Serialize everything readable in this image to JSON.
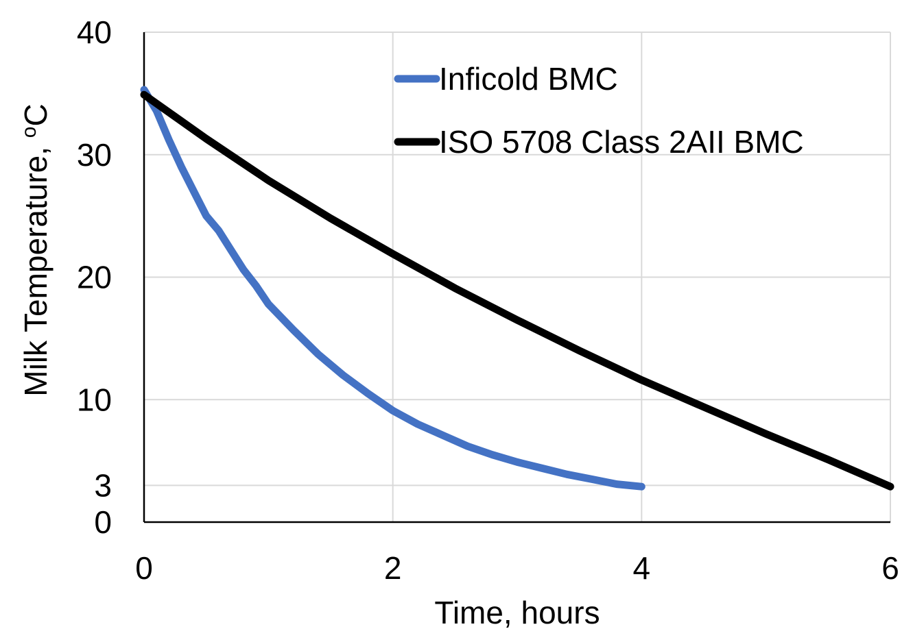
{
  "chart_data": {
    "type": "line",
    "xlabel": "Time, hours",
    "ylabel_main": "Milk Temperature, ",
    "ylabel_super": "o",
    "ylabel_unit": "C",
    "xlim": [
      0,
      6
    ],
    "ylim": [
      0,
      40
    ],
    "x_ticks": [
      0,
      2,
      4,
      6
    ],
    "x_tick_labels": [
      "0",
      "2",
      "4",
      "6"
    ],
    "y_ticks": [
      0,
      3,
      10,
      20,
      30,
      40
    ],
    "y_tick_labels": [
      "0",
      "3",
      "10",
      "20",
      "30",
      "40"
    ],
    "grid": true,
    "legend_position": "top-right",
    "series": [
      {
        "name": "Inficold BMC",
        "color": "#4472C4",
        "x": [
          0,
          0.1,
          0.2,
          0.3,
          0.4,
          0.5,
          0.6,
          0.7,
          0.8,
          0.9,
          1.0,
          1.2,
          1.4,
          1.6,
          1.8,
          2.0,
          2.2,
          2.4,
          2.6,
          2.8,
          3.0,
          3.2,
          3.4,
          3.6,
          3.8,
          4.0
        ],
        "y": [
          35.3,
          33.6,
          31.2,
          29.0,
          27.0,
          25.0,
          23.8,
          22.2,
          20.6,
          19.3,
          17.8,
          15.7,
          13.7,
          12.0,
          10.5,
          9.1,
          8.0,
          7.1,
          6.2,
          5.5,
          4.9,
          4.4,
          3.9,
          3.5,
          3.1,
          2.9
        ]
      },
      {
        "name": "ISO 5708 Class 2AII BMC",
        "color": "#000000",
        "x": [
          0,
          0.5,
          1.0,
          1.5,
          2.0,
          2.5,
          3.0,
          3.5,
          4.0,
          4.5,
          5.0,
          5.5,
          6.0
        ],
        "y": [
          34.9,
          31.3,
          27.9,
          24.8,
          21.9,
          19.1,
          16.5,
          14.0,
          11.6,
          9.4,
          7.2,
          5.1,
          2.9
        ]
      }
    ]
  }
}
